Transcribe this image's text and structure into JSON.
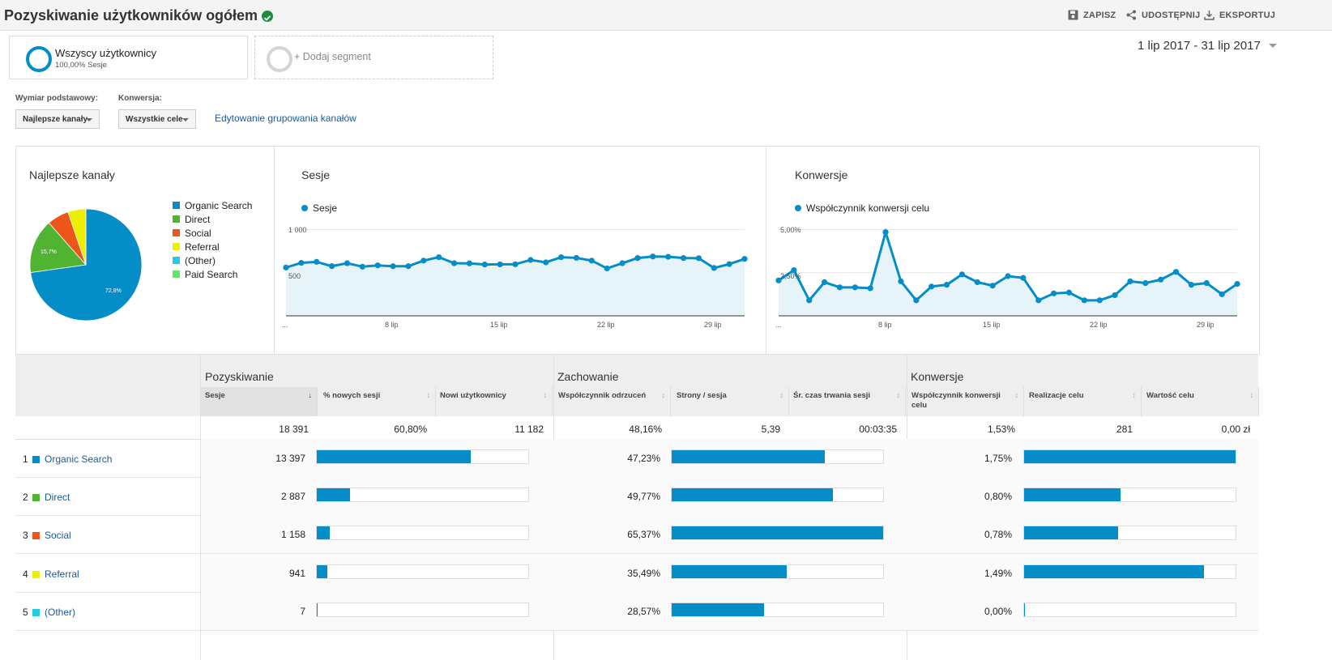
{
  "header": {
    "title": "Pozyskiwanie użytkowników ogółem",
    "save_label": "ZAPISZ",
    "share_label": "UDOSTĘPNIJ",
    "export_label": "EKSPORTUJ"
  },
  "segments": {
    "active_name": "Wszyscy użytkownicy",
    "active_detail": "100,00% Sesje",
    "add_label": "+ Dodaj segment"
  },
  "date_range": "1 lip 2017 - 31 lip 2017",
  "controls": {
    "primary_dimension_label": "Wymiar podstawowy:",
    "primary_dimension_value": "Najlepsze kanały",
    "conversion_label": "Konwersja:",
    "conversion_value": "Wszystkie cele",
    "edit_link": "Edytowanie grupowania kanałów"
  },
  "colors": {
    "accent": "#058dc7",
    "organic": "#058dc7",
    "direct": "#50b432",
    "social": "#ed561b",
    "referral": "#edef00",
    "other": "#24cbe5",
    "paid": "#64e572"
  },
  "pie_panel": {
    "title": "Najlepsze kanały",
    "legend": [
      {
        "name": "Organic Search",
        "color": "#058dc7"
      },
      {
        "name": "Direct",
        "color": "#50b432"
      },
      {
        "name": "Social",
        "color": "#ed561b"
      },
      {
        "name": "Referral",
        "color": "#edef00"
      },
      {
        "name": "(Other)",
        "color": "#24cbe5"
      },
      {
        "name": "Paid Search",
        "color": "#64e572"
      }
    ],
    "slice_label_direct": "15,7%",
    "slice_label_organic": "72,8%"
  },
  "chart_data": [
    {
      "type": "pie",
      "title": "Najlepsze kanały",
      "categories": [
        "Organic Search",
        "Direct",
        "Social",
        "Referral",
        "(Other)",
        "Paid Search"
      ],
      "values": [
        72.8,
        15.7,
        6.3,
        5.1,
        0.04,
        0.06
      ],
      "colors": [
        "#058dc7",
        "#50b432",
        "#ed561b",
        "#edef00",
        "#24cbe5",
        "#64e572"
      ]
    },
    {
      "type": "area",
      "title": "Sesje",
      "series": [
        {
          "name": "Sesje",
          "values": [
            560,
            614,
            626,
            576,
            610,
            570,
            585,
            575,
            575,
            640,
            680,
            610,
            608,
            595,
            597,
            598,
            648,
            620,
            680,
            672,
            640,
            550,
            610,
            670,
            688,
            685,
            670,
            668,
            555,
            600,
            660
          ]
        }
      ],
      "x_tick_labels": [
        "...",
        "8 lip",
        "15 lip",
        "22 lip",
        "29 lip"
      ],
      "y_tick_labels": [
        "1 000",
        "500"
      ],
      "ylim": [
        0,
        1000
      ]
    },
    {
      "type": "area",
      "title": "Konwersje",
      "series": [
        {
          "name": "Współczynnik konwersji celu",
          "values": [
            2.05,
            2.65,
            0.9,
            1.95,
            1.65,
            1.65,
            1.6,
            4.85,
            2.0,
            0.9,
            1.7,
            1.8,
            2.4,
            1.95,
            1.75,
            2.3,
            2.2,
            0.9,
            1.3,
            1.35,
            0.9,
            0.9,
            1.2,
            2.0,
            1.9,
            2.1,
            2.55,
            1.8,
            1.9,
            1.25,
            1.85
          ]
        }
      ],
      "x_tick_labels": [
        "...",
        "8 lip",
        "15 lip",
        "22 lip",
        "29 lip"
      ],
      "y_tick_labels": [
        "5,00%",
        "2,50%"
      ],
      "ylim": [
        0,
        5
      ]
    }
  ],
  "sessions_panel": {
    "title": "Sesje",
    "legend": "Sesje",
    "y_top": "1 000",
    "y_mid": "500",
    "x_ticks": [
      "...",
      "8 lip",
      "15 lip",
      "22 lip",
      "29 lip"
    ]
  },
  "conv_panel": {
    "title": "Konwersje",
    "legend": "Współczynnik konwersji celu",
    "y_top": "5,00%",
    "y_mid": "2,50%",
    "x_ticks": [
      "...",
      "8 lip",
      "15 lip",
      "22 lip",
      "29 lip"
    ]
  },
  "table": {
    "groups": [
      "Pozyskiwanie",
      "Zachowanie",
      "Konwersje"
    ],
    "columns": [
      "Sesje",
      "% nowych sesji",
      "Nowi użytkownicy",
      "Współczynnik odrzuceń",
      "Strony / sesja",
      "Śr. czas trwania sesji",
      "Współczynnik konwersji celu",
      "Realizacje celu",
      "Wartość celu"
    ],
    "totals": [
      "18 391",
      "60,80%",
      "11 182",
      "48,16%",
      "5,39",
      "00:03:35",
      "1,53%",
      "281",
      "0,00 zł"
    ],
    "rows": [
      {
        "num": "1",
        "name": "Organic Search",
        "color": "#058dc7",
        "sessions": "13 397",
        "sessions_share": 0.728,
        "bounce": "47,23%",
        "bounce_share": 0.7225,
        "conv": "1,75%",
        "conv_share": 1.0
      },
      {
        "num": "2",
        "name": "Direct",
        "color": "#50b432",
        "sessions": "2 887",
        "sessions_share": 0.157,
        "bounce": "49,77%",
        "bounce_share": 0.761,
        "conv": "0,80%",
        "conv_share": 0.457
      },
      {
        "num": "3",
        "name": "Social",
        "color": "#ed561b",
        "sessions": "1 158",
        "sessions_share": 0.063,
        "bounce": "65,37%",
        "bounce_share": 1.0,
        "conv": "0,78%",
        "conv_share": 0.446
      },
      {
        "num": "4",
        "name": "Referral",
        "color": "#edef00",
        "sessions": "941",
        "sessions_share": 0.051,
        "bounce": "35,49%",
        "bounce_share": 0.543,
        "conv": "1,49%",
        "conv_share": 0.851
      },
      {
        "num": "5",
        "name": "(Other)",
        "color": "#24cbe5",
        "sessions": "7",
        "sessions_share": 0.0004,
        "bounce": "28,57%",
        "bounce_share": 0.437,
        "conv": "0,00%",
        "conv_share": 0.0
      }
    ]
  }
}
